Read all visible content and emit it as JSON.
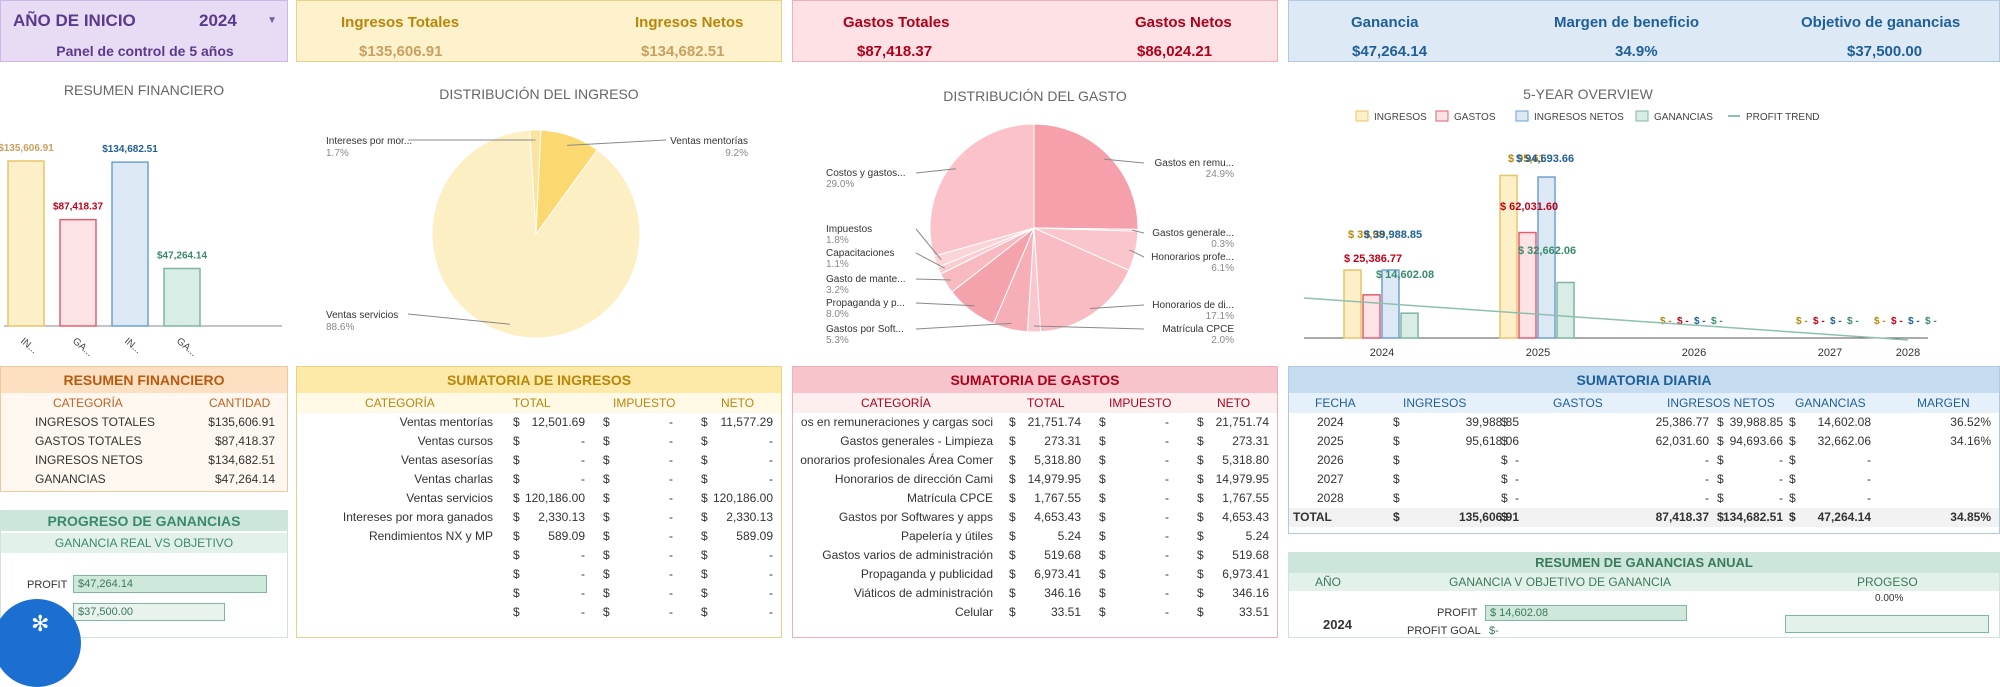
{
  "header": {
    "year_label": "AÑO DE INICIO",
    "year_value": "2024",
    "subtitle": "Panel de control de 5 años",
    "ingresos_totales_label": "Ingresos Totales",
    "ingresos_totales": "$135,606.91",
    "ingresos_netos_label": "Ingresos Netos",
    "ingresos_netos": "$134,682.51",
    "gastos_totales_label": "Gastos Totales",
    "gastos_totales": "$87,418.37",
    "gastos_netos_label": "Gastos Netos",
    "gastos_netos": "$86,024.21",
    "ganancia_label": "Ganancia",
    "ganancia": "$47,264.14",
    "margen_label": "Margen de beneficio",
    "margen": "34.9%",
    "objetivo_label": "Objetivo de ganancias",
    "objetivo": "$37,500.00"
  },
  "colors": {
    "ingresos": "#fdf0c8",
    "ingresos_border": "#e8c46c",
    "gastos": "#fde2e6",
    "gastos_border": "#e06070",
    "netos": "#dce9f5",
    "netos_border": "#6fa0d0",
    "ganancia": "#d9ece6",
    "ganancia_border": "#7fb5a3",
    "purple": "#e8dcf5"
  },
  "resumen_chart": {
    "title": "RESUMEN FINANCIERO",
    "bars": [
      {
        "label": "$135,606.91",
        "value": 135606.91,
        "tick": "IN..."
      },
      {
        "label": "$87,418.37",
        "value": 87418.37,
        "tick": "GA..."
      },
      {
        "label": "$134,682.51",
        "value": 134682.51,
        "tick": "IN..."
      },
      {
        "label": "$47,264.14",
        "value": 47264.14,
        "tick": "GA..."
      }
    ]
  },
  "chart_data": [
    {
      "type": "pie",
      "title": "DISTRIBUCIÓN DEL INGRESO",
      "slices": [
        {
          "name": "Ventas servicios",
          "pct": "88.6%",
          "value": 88.6
        },
        {
          "name": "Intereses por mor...",
          "pct": "1.7%",
          "value": 1.7
        },
        {
          "name": "Ventas mentorías",
          "pct": "9.2%",
          "value": 9.2
        }
      ]
    },
    {
      "type": "pie",
      "title": "DISTRIBUCIÓN DEL GASTO",
      "slices": [
        {
          "name": "Gastos en remu...",
          "pct": "24.9%",
          "value": 24.9
        },
        {
          "name": "Gastos generale...",
          "pct": "0.3%",
          "value": 0.3
        },
        {
          "name": "Honorarios profe...",
          "pct": "6.1%",
          "value": 6.1
        },
        {
          "name": "Honorarios de di...",
          "pct": "17.1%",
          "value": 17.1
        },
        {
          "name": "Matrícula CPCE",
          "pct": "2.0%",
          "value": 2.0
        },
        {
          "name": "Gastos por Soft...",
          "pct": "5.3%",
          "value": 5.3
        },
        {
          "name": "Propaganda y p...",
          "pct": "8.0%",
          "value": 8.0
        },
        {
          "name": "Gasto de mante...",
          "pct": "3.2%",
          "value": 3.2
        },
        {
          "name": "Capacitaciones",
          "pct": "1.1%",
          "value": 1.1
        },
        {
          "name": "Impuestos",
          "pct": "1.8%",
          "value": 1.8
        },
        {
          "name": "Costos y gastos...",
          "pct": "29.0%",
          "value": 29.0
        }
      ]
    },
    {
      "type": "bar",
      "title": "5-YEAR OVERVIEW",
      "categories": [
        "2024",
        "2025",
        "2026",
        "2027",
        "2028"
      ],
      "legend": [
        "INGRESOS",
        "GASTOS",
        "INGRESOS NETOS",
        "GANANCIAS",
        "PROFIT TREND"
      ],
      "series": [
        {
          "name": "INGRESOS",
          "values": [
            39988.85,
            95618.06,
            0,
            0,
            0
          ],
          "labels": [
            "$ 39,98",
            "$ 95,61",
            "$ -",
            "$ -",
            "$ -"
          ]
        },
        {
          "name": "GASTOS",
          "values": [
            25386.77,
            62031.6,
            0,
            0,
            0
          ],
          "labels": [
            "$ 25,386.77",
            "$ 62,031.60",
            "$ -",
            "$ -",
            "$ -"
          ]
        },
        {
          "name": "INGRESOS NETOS",
          "values": [
            39988.85,
            94693.66,
            0,
            0,
            0
          ],
          "labels": [
            "$ 39,988.85",
            "$ 94,693.66",
            "$ -",
            "$ -",
            "$ -"
          ]
        },
        {
          "name": "GANANCIAS",
          "values": [
            14602.08,
            32662.06,
            0,
            0,
            0
          ],
          "labels": [
            "$ 14,602.08",
            "$ 32,662.06",
            "$ -",
            "$ -",
            "$ -"
          ]
        }
      ]
    }
  ],
  "resumen_table": {
    "title": "RESUMEN FINANCIERO",
    "col1": "CATEGORÍA",
    "col2": "CANTIDAD",
    "rows": [
      {
        "c": "INGRESOS TOTALES",
        "v": "$135,606.91"
      },
      {
        "c": "GASTOS TOTALES",
        "v": "$87,418.37"
      },
      {
        "c": "INGRESOS NETOS",
        "v": "$134,682.51"
      },
      {
        "c": "GANANCIAS",
        "v": "$47,264.14"
      }
    ]
  },
  "progreso": {
    "title": "PROGRESO DE GANANCIAS",
    "subtitle": "GANANCIA REAL VS OBJETIVO",
    "profit_label": "PROFIT",
    "profit_value": "$47,264.14",
    "goal_value": "$37,500.00"
  },
  "ingresos_table": {
    "title": "SUMATORIA DE INGRESOS",
    "cols": [
      "CATEGORÍA",
      "TOTAL",
      "IMPUESTO",
      "NETO"
    ],
    "rows": [
      {
        "c": "Ventas mentorías",
        "t": "12,501.69",
        "i": "-",
        "n": "11,577.29"
      },
      {
        "c": "Ventas cursos",
        "t": "-",
        "i": "-",
        "n": "-"
      },
      {
        "c": "Ventas asesorías",
        "t": "-",
        "i": "-",
        "n": "-"
      },
      {
        "c": "Ventas charlas",
        "t": "-",
        "i": "-",
        "n": "-"
      },
      {
        "c": "Ventas servicios",
        "t": "120,186.00",
        "i": "-",
        "n": "120,186.00"
      },
      {
        "c": "Intereses por mora ganados",
        "t": "2,330.13",
        "i": "-",
        "n": "2,330.13"
      },
      {
        "c": "Rendimientos NX y MP",
        "t": "589.09",
        "i": "-",
        "n": "589.09"
      },
      {
        "c": "",
        "t": "-",
        "i": "-",
        "n": "-"
      },
      {
        "c": "",
        "t": "-",
        "i": "-",
        "n": "-"
      },
      {
        "c": "",
        "t": "-",
        "i": "-",
        "n": "-"
      },
      {
        "c": "",
        "t": "-",
        "i": "-",
        "n": "-"
      }
    ]
  },
  "gastos_table": {
    "title": "SUMATORIA DE GASTOS",
    "cols": [
      "CATEGORÍA",
      "TOTAL",
      "IMPUESTO",
      "NETO"
    ],
    "rows": [
      {
        "c": "os en remuneraciones y cargas soci",
        "t": "21,751.74",
        "i": "-",
        "n": "21,751.74"
      },
      {
        "c": "Gastos generales - Limpieza",
        "t": "273.31",
        "i": "-",
        "n": "273.31"
      },
      {
        "c": "onorarios profesionales Área Comer",
        "t": "5,318.80",
        "i": "-",
        "n": "5,318.80"
      },
      {
        "c": "Honorarios de dirección Cami",
        "t": "14,979.95",
        "i": "-",
        "n": "14,979.95"
      },
      {
        "c": "Matrícula CPCE",
        "t": "1,767.55",
        "i": "-",
        "n": "1,767.55"
      },
      {
        "c": "Gastos por Softwares y apps",
        "t": "4,653.43",
        "i": "-",
        "n": "4,653.43"
      },
      {
        "c": "Papelería y útiles",
        "t": "5.24",
        "i": "-",
        "n": "5.24"
      },
      {
        "c": "Gastos varios de administración",
        "t": "519.68",
        "i": "-",
        "n": "519.68"
      },
      {
        "c": "Propaganda y publicidad",
        "t": "6,973.41",
        "i": "-",
        "n": "6,973.41"
      },
      {
        "c": "Viáticos de administración",
        "t": "346.16",
        "i": "-",
        "n": "346.16"
      },
      {
        "c": "Celular",
        "t": "33.51",
        "i": "-",
        "n": "33.51"
      }
    ]
  },
  "diaria_table": {
    "title": "SUMATORIA DIARIA",
    "cols": [
      "FECHA",
      "INGRESOS",
      "GASTOS",
      "INGRESOS NETOS",
      "GANANCIAS",
      "MARGEN"
    ],
    "rows": [
      {
        "f": "2024",
        "i": "39,988.85",
        "g": "25,386.77",
        "n": "39,988.85",
        "p": "14,602.08",
        "m": "36.52%"
      },
      {
        "f": "2025",
        "i": "95,618.06",
        "g": "62,031.60",
        "n": "94,693.66",
        "p": "32,662.06",
        "m": "34.16%"
      },
      {
        "f": "2026",
        "i": "-",
        "g": "-",
        "n": "-",
        "p": "-",
        "m": ""
      },
      {
        "f": "2027",
        "i": "-",
        "g": "-",
        "n": "-",
        "p": "-",
        "m": ""
      },
      {
        "f": "2028",
        "i": "-",
        "g": "-",
        "n": "-",
        "p": "-",
        "m": ""
      }
    ],
    "total": {
      "f": "TOTAL",
      "i": "135,606.91",
      "g": "87,418.37",
      "n": "134,682.51",
      "p": "47,264.14",
      "m": "34.85%"
    }
  },
  "anual": {
    "title": "RESUMEN DE GANANCIAS ANUAL",
    "col1": "AÑO",
    "col2": "GANANCIA V OBJETIVO DE GANANCIA",
    "col3": "PROGESO",
    "year": "2024",
    "profit_label": "PROFIT",
    "profit_value": "$ 14,602.08",
    "goal_label": "PROFIT GOAL",
    "goal_value": "$-",
    "progress": "0.00%"
  },
  "currency": "$"
}
